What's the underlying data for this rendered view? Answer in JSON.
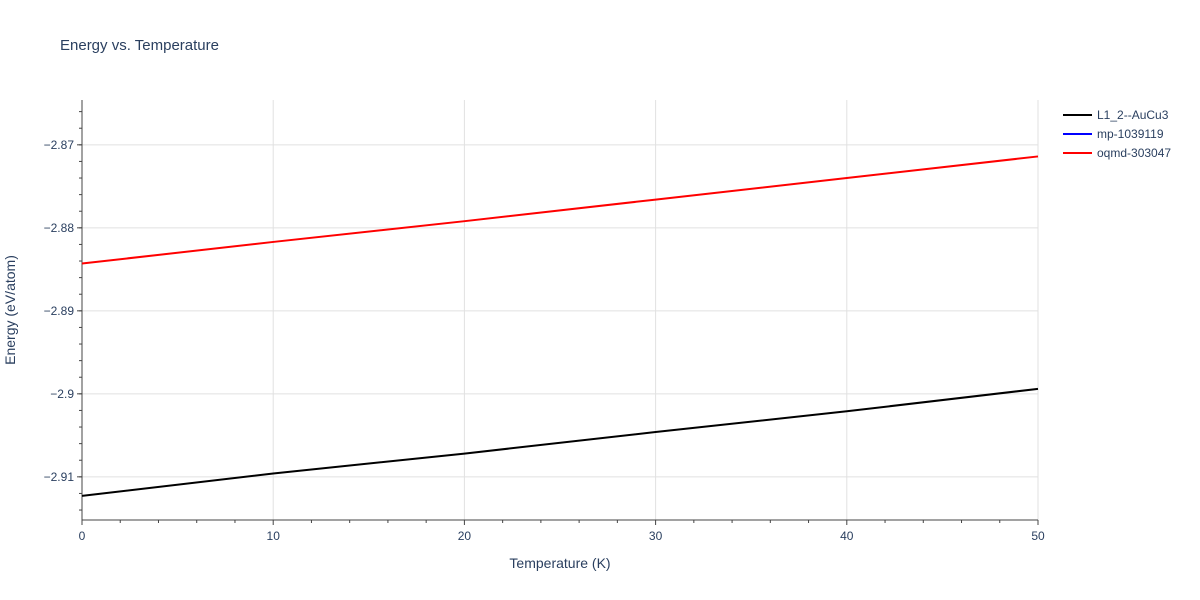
{
  "chart_data": {
    "type": "line",
    "title": "Energy vs. Temperature",
    "xlabel": "Temperature (K)",
    "ylabel": "Energy (eV/atom)",
    "xlim": [
      0,
      50
    ],
    "ylim": [
      -2.9152,
      -2.8646
    ],
    "x_ticks": [
      0,
      10,
      20,
      30,
      40,
      50
    ],
    "x_tick_labels": [
      "0",
      "10",
      "20",
      "30",
      "40",
      "50"
    ],
    "y_ticks": [
      -2.91,
      -2.9,
      -2.89,
      -2.88,
      -2.87
    ],
    "y_tick_labels": [
      "−2.91",
      "−2.9",
      "−2.89",
      "−2.88",
      "−2.87"
    ],
    "grid": true,
    "legend_position": "top-right",
    "series": [
      {
        "name": "L1_2--AuCu3",
        "color": "#000000",
        "x": [
          0,
          10,
          20,
          30,
          40,
          50
        ],
        "values": [
          -2.9123,
          -2.9096,
          -2.9072,
          -2.9046,
          -2.9021,
          -2.8994
        ]
      },
      {
        "name": "mp-1039119",
        "color": "#0000ff",
        "x": [],
        "values": []
      },
      {
        "name": "oqmd-303047",
        "color": "#ff0000",
        "x": [
          0,
          10,
          20,
          30,
          40,
          50
        ],
        "values": [
          -2.8843,
          -2.8817,
          -2.8792,
          -2.8766,
          -2.874,
          -2.8714
        ]
      }
    ]
  }
}
